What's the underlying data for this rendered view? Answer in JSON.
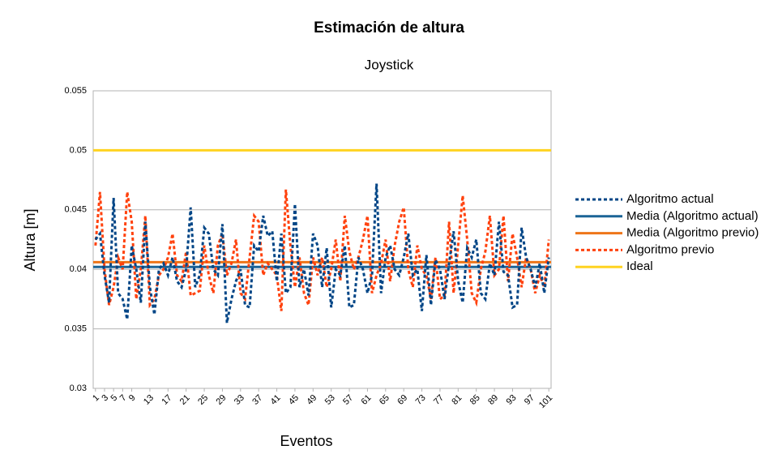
{
  "chart_data": {
    "type": "line",
    "title": "Estimación de altura",
    "subtitle": "Joystick",
    "x_label": "Eventos",
    "y_label": "Altura [m]",
    "categories": [
      "1",
      null,
      "3",
      null,
      "5",
      null,
      "7",
      null,
      "9",
      null,
      null,
      null,
      "13",
      null,
      null,
      null,
      "17",
      null,
      null,
      null,
      "21",
      null,
      null,
      null,
      "25",
      null,
      null,
      null,
      "29",
      null,
      null,
      null,
      "33",
      null,
      null,
      null,
      "37",
      null,
      null,
      null,
      "41",
      null,
      null,
      null,
      "45",
      null,
      null,
      null,
      "49",
      null,
      null,
      null,
      "53",
      null,
      null,
      null,
      "57",
      null,
      null,
      null,
      "61",
      null,
      null,
      null,
      "65",
      null,
      null,
      null,
      "69",
      null,
      null,
      null,
      "73",
      null,
      null,
      null,
      "77",
      null,
      null,
      null,
      "81",
      null,
      null,
      null,
      "85",
      null,
      null,
      null,
      "89",
      null,
      null,
      null,
      "93",
      null,
      null,
      null,
      "97",
      null,
      null,
      null,
      "101"
    ],
    "ylim": [
      0.03,
      0.055
    ],
    "yticks": [
      0.03,
      0.035,
      0.04,
      0.045,
      0.05,
      0.055
    ],
    "grid": true,
    "legend": "right",
    "series": [
      {
        "name": "Algoritmo actual",
        "color": "#004586",
        "dashed": true,
        "values": [
          0.0425,
          0.043,
          0.0395,
          0.0372,
          0.046,
          0.038,
          0.0375,
          0.0358,
          0.042,
          0.04,
          0.0372,
          0.044,
          0.0385,
          0.0362,
          0.04,
          0.0405,
          0.0395,
          0.041,
          0.039,
          0.0385,
          0.04,
          0.0452,
          0.0385,
          0.0395,
          0.0435,
          0.043,
          0.04,
          0.0395,
          0.0438,
          0.0355,
          0.0375,
          0.039,
          0.04,
          0.037,
          0.0368,
          0.042,
          0.0415,
          0.0445,
          0.0428,
          0.0432,
          0.039,
          0.043,
          0.038,
          0.0385,
          0.0455,
          0.0385,
          0.04,
          0.0378,
          0.043,
          0.042,
          0.0385,
          0.0418,
          0.0368,
          0.04,
          0.0395,
          0.042,
          0.0368,
          0.037,
          0.041,
          0.04,
          0.038,
          0.0395,
          0.0472,
          0.038,
          0.041,
          0.042,
          0.04,
          0.0395,
          0.041,
          0.043,
          0.0395,
          0.04,
          0.0365,
          0.0412,
          0.037,
          0.0408,
          0.04,
          0.0375,
          0.0405,
          0.0432,
          0.039,
          0.0372,
          0.0418,
          0.041,
          0.0425,
          0.038,
          0.0375,
          0.0405,
          0.0395,
          0.044,
          0.0398,
          0.0395,
          0.0368,
          0.037,
          0.0435,
          0.041,
          0.04,
          0.0385,
          0.0405,
          0.038,
          0.041
        ]
      },
      {
        "name": "Media (Algoritmo actual)",
        "color": "#1b6496",
        "dashed": false,
        "value": 0.0402
      },
      {
        "name": "Media (Algoritmo previo)",
        "color": "#ee7518",
        "dashed": false,
        "value": 0.0406
      },
      {
        "name": "Algoritmo previo",
        "color": "#ff420e",
        "dashed": true,
        "values": [
          0.042,
          0.0465,
          0.04,
          0.037,
          0.0385,
          0.041,
          0.04,
          0.0465,
          0.044,
          0.0375,
          0.04,
          0.0445,
          0.037,
          0.0375,
          0.0395,
          0.04,
          0.041,
          0.043,
          0.0395,
          0.039,
          0.0415,
          0.0378,
          0.038,
          0.0382,
          0.042,
          0.0395,
          0.038,
          0.042,
          0.043,
          0.0395,
          0.0405,
          0.0425,
          0.038,
          0.0375,
          0.041,
          0.0445,
          0.044,
          0.0395,
          0.0405,
          0.04,
          0.0395,
          0.0365,
          0.0467,
          0.042,
          0.0385,
          0.041,
          0.038,
          0.037,
          0.041,
          0.0395,
          0.041,
          0.0385,
          0.04,
          0.0425,
          0.039,
          0.0445,
          0.0415,
          0.04,
          0.041,
          0.0425,
          0.0445,
          0.038,
          0.0395,
          0.0405,
          0.0425,
          0.039,
          0.042,
          0.044,
          0.0452,
          0.04,
          0.0385,
          0.042,
          0.04,
          0.0395,
          0.0375,
          0.041,
          0.0375,
          0.0378,
          0.044,
          0.038,
          0.042,
          0.0462,
          0.0425,
          0.038,
          0.0372,
          0.04,
          0.0415,
          0.0445,
          0.0395,
          0.04,
          0.0445,
          0.039,
          0.043,
          0.041,
          0.0385,
          0.041,
          0.04,
          0.038,
          0.0395,
          0.0385,
          0.0425
        ]
      },
      {
        "name": "Ideal",
        "color": "#ffd320",
        "dashed": false,
        "value": 0.05
      }
    ]
  }
}
